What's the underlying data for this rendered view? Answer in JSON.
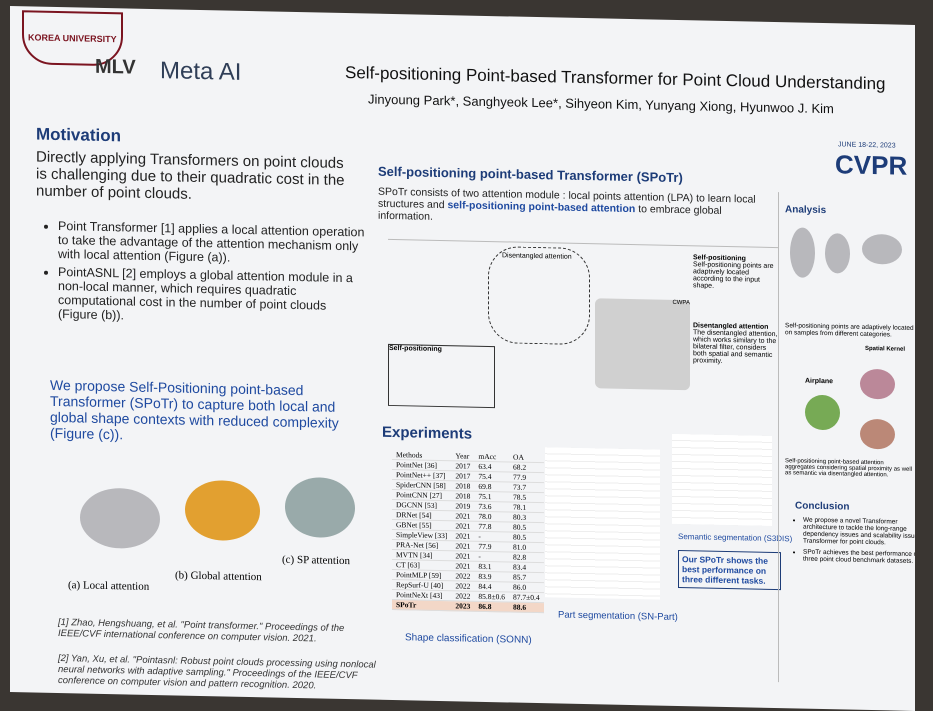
{
  "header": {
    "logos": [
      "KOREA UNIVERSITY",
      "MLV",
      "Meta AI"
    ],
    "title": "Self-positioning Point-based Transformer for Point Cloud Understanding",
    "authors": "Jinyoung Park*, Sanghyeok Lee*, Sihyeon Kim, Yunyang Xiong, Hyunwoo J. Kim",
    "conference": "CVPR",
    "dates": "JUNE 18-22, 2023"
  },
  "motivation": {
    "heading": "Motivation",
    "intro": "Directly applying Transformers on point clouds is challenging due to their quadratic cost in the number of point clouds.",
    "bullets": [
      "Point Transformer [1] applies a local attention operation to take the advantage of the attention mechanism only with local attention (Figure (a)).",
      "PointASNL [2] employs a global attention module in a non-local manner, which requires quadratic computational cost in the number of point clouds (Figure (b))."
    ],
    "proposal": "We propose Self-Positioning point-based Transformer (SPoTr) to capture both local and global shape contexts with reduced complexity (Figure (c)).",
    "captions": [
      "(a) Local attention",
      "(b) Global attention",
      "(c) SP attention"
    ],
    "references": [
      "[1] Zhao, Hengshuang, et al. \"Point transformer.\" Proceedings of the IEEE/CVF international conference on computer vision. 2021.",
      "[2] Yan, Xu, et al. \"Pointasnl: Robust point clouds processing using nonlocal neural networks with adaptive sampling.\" Proceedings of the IEEE/CVF conference on computer vision and pattern recognition. 2020."
    ]
  },
  "spotr": {
    "heading": "Self-positioning point-based Transformer (SPoTr)",
    "description": [
      "SPoTr consists of two attention module : local points attention (LPA) to learn local structures and",
      "self-positioning point-based attention",
      "to embrace global information."
    ],
    "figure_labels": [
      "Disentangled attention",
      "Self-positioning",
      "CWPA"
    ],
    "sp_heading": "Self-positioning",
    "sp_text": "Self-positioning points are adaptively located according to the input shape.",
    "da_heading": "Disentangled attention",
    "da_text": "The disentangled attention, which works similary to the bilateral filter, considers both spatial and semantic proximity."
  },
  "experiments": {
    "heading": "Experiments",
    "shape_table": {
      "header": [
        "Methods",
        "Year",
        "mAcc",
        "OA"
      ],
      "rows": [
        [
          "PointNet [36]",
          "2017",
          "63.4",
          "68.2"
        ],
        [
          "PointNet++ [37]",
          "2017",
          "75.4",
          "77.9"
        ],
        [
          "SpiderCNN [58]",
          "2018",
          "69.8",
          "73.7"
        ],
        [
          "PointCNN [27]",
          "2018",
          "75.1",
          "78.5"
        ],
        [
          "DGCNN [53]",
          "2019",
          "73.6",
          "78.1"
        ],
        [
          "DRNet [54]",
          "2021",
          "78.0",
          "80.3"
        ],
        [
          "GBNet [55]",
          "2021",
          "77.8",
          "80.5"
        ],
        [
          "SimpleView [33]",
          "2021",
          "-",
          "80.5"
        ],
        [
          "PRA-Net [56]",
          "2021",
          "77.9",
          "81.0"
        ],
        [
          "MVTN [34]",
          "2021",
          "-",
          "82.8"
        ],
        [
          "CT [63]",
          "2021",
          "83.1",
          "83.4"
        ],
        [
          "PointMLP [59]",
          "2022",
          "83.9",
          "85.7"
        ],
        [
          "RepSurf-U [40]",
          "2022",
          "84.4",
          "86.0"
        ],
        [
          "PointNeXt [43]",
          "2022",
          "85.8±0.6",
          "87.7±0.4"
        ],
        [
          "SPoTr",
          "2023",
          "86.8",
          "88.6"
        ]
      ]
    },
    "captions": [
      "Shape classification (SONN)",
      "Part segmentation (SN-Part)",
      "Semantic segmentation (S3DIS)"
    ],
    "callout": "Our SPoTr shows the best performance on three different tasks."
  },
  "analysis": {
    "heading": "Analysis",
    "text": "Self-positioning points are adaptively located on samples from different categories.",
    "labels": [
      "Airplane",
      "Spatial Kernel"
    ],
    "text2": "Self-positioning point-based attention aggregates considering spatial proximity as well as semantic via disentangled attention."
  },
  "conclusion": {
    "heading": "Conclusion",
    "bullets": [
      "We propose a novel Transformer architecture to tackle the long-range dependency issues and scalability issue of Transformer for point clouds.",
      "SPoTr achieves the best performance on three point cloud benchmark datasets."
    ]
  }
}
